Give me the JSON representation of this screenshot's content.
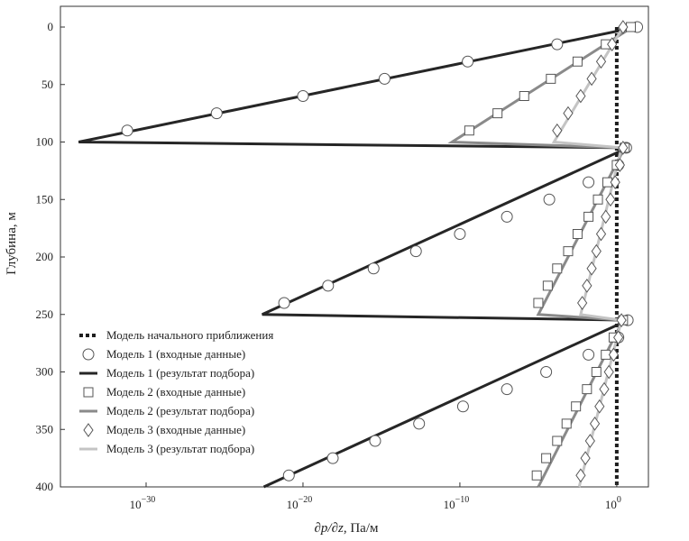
{
  "chart_data": {
    "type": "line",
    "xlabel_parts": [
      "∂p/∂z",
      ", Па/м"
    ],
    "ylabel": "Глубина, м",
    "x_scale": "log",
    "xlim_log10": [
      -35,
      1.5
    ],
    "ylim": [
      0,
      400
    ],
    "y_inverted": true,
    "x_ticks": [
      {
        "exp": -30,
        "base": "10",
        "sup": "−30"
      },
      {
        "exp": -20,
        "base": "10",
        "sup": "−20"
      },
      {
        "exp": -10,
        "base": "10",
        "sup": "−10"
      },
      {
        "exp": 0,
        "base": "10",
        "sup": "0"
      }
    ],
    "y_ticks": [
      0,
      50,
      100,
      150,
      200,
      250,
      300,
      350,
      400
    ],
    "grid": false,
    "legend_position": "lower-left",
    "colors": {
      "initial": "#1e1e1e",
      "model1": "#262626",
      "model2": "#8a8a8a",
      "model3": "#c4c4c4",
      "marker_stroke": "#555555"
    },
    "series": [
      {
        "name": "Модель начального приближения",
        "kind": "line",
        "style": "dotted",
        "color_key": "initial",
        "x_log10": [
          0,
          0,
          0,
          0,
          0,
          0,
          0,
          0,
          0,
          0,
          0,
          0,
          0,
          0,
          0,
          0,
          0,
          0
        ],
        "y": [
          0,
          25,
          50,
          75,
          100,
          125,
          150,
          175,
          200,
          225,
          250,
          275,
          300,
          325,
          350,
          375,
          390,
          400
        ]
      },
      {
        "name": "Модель 1 (входные данные)",
        "kind": "markers",
        "marker": "circle",
        "color_key": "model1",
        "x_log10": [
          1.3,
          -3.8,
          -9.5,
          -14.8,
          -20.0,
          -25.5,
          -31.2,
          0.6,
          0.1,
          -1.8,
          -4.3,
          -7.0,
          -10.0,
          -12.8,
          -15.5,
          -18.4,
          -21.2,
          0.7,
          0.1,
          -1.8,
          -4.5,
          -7.0,
          -9.8,
          -12.6,
          -15.4,
          -18.1,
          -20.9
        ],
        "y": [
          0,
          15,
          30,
          45,
          60,
          75,
          90,
          105,
          120,
          135,
          150,
          165,
          180,
          195,
          210,
          225,
          240,
          255,
          270,
          285,
          300,
          315,
          330,
          345,
          360,
          375,
          390
        ]
      },
      {
        "name": "Модель 1 (результат подбора)",
        "kind": "line",
        "style": "solid",
        "color_key": "model1",
        "x_log10": [
          1.3,
          -34.3,
          0.7,
          -22.6,
          0.7,
          -22.5
        ],
        "y": [
          0,
          100,
          105,
          250,
          255,
          400
        ]
      },
      {
        "name": "Модель 2 (входные данные)",
        "kind": "markers",
        "marker": "square",
        "color_key": "model2",
        "x_log10": [
          0.9,
          -0.7,
          -2.5,
          -4.2,
          -5.9,
          -7.6,
          -9.4,
          0.5,
          0.0,
          -0.6,
          -1.2,
          -1.8,
          -2.5,
          -3.1,
          -3.8,
          -4.4,
          -5.0,
          0.4,
          -0.2,
          -0.7,
          -1.3,
          -1.9,
          -2.6,
          -3.2,
          -3.8,
          -4.5,
          -5.1
        ],
        "y": [
          0,
          15,
          30,
          45,
          60,
          75,
          90,
          105,
          120,
          135,
          150,
          165,
          180,
          195,
          210,
          225,
          240,
          255,
          270,
          285,
          300,
          315,
          330,
          345,
          360,
          375,
          390
        ]
      },
      {
        "name": "Модель 2 (результат подбора)",
        "kind": "line",
        "style": "solid",
        "color_key": "model2",
        "x_log10": [
          1.0,
          -10.5,
          0.5,
          -5.0,
          0.4,
          -5.0
        ],
        "y": [
          0,
          100,
          105,
          250,
          255,
          400
        ]
      },
      {
        "name": "Модель 3 (входные данные)",
        "kind": "markers",
        "marker": "diamond",
        "color_key": "model3",
        "x_log10": [
          0.4,
          -0.3,
          -1.0,
          -1.6,
          -2.3,
          -3.1,
          -3.8,
          0.4,
          0.2,
          -0.1,
          -0.4,
          -0.7,
          -1.0,
          -1.3,
          -1.6,
          -1.9,
          -2.2,
          0.3,
          0.1,
          -0.2,
          -0.5,
          -0.8,
          -1.1,
          -1.4,
          -1.7,
          -2.0,
          -2.3
        ],
        "y": [
          0,
          15,
          30,
          45,
          60,
          75,
          90,
          105,
          120,
          135,
          150,
          165,
          180,
          195,
          210,
          225,
          240,
          255,
          270,
          285,
          300,
          315,
          330,
          345,
          360,
          375,
          390
        ]
      },
      {
        "name": "Модель 3 (результат подбора)",
        "kind": "line",
        "style": "solid",
        "color_key": "model3",
        "x_log10": [
          0.4,
          -4.0,
          0.3,
          -2.3,
          0.3,
          -2.4
        ],
        "y": [
          0,
          100,
          105,
          250,
          255,
          400
        ]
      }
    ],
    "legend": [
      {
        "label": "Модель начального приближения",
        "kind": "line",
        "style": "dotted",
        "color_key": "initial"
      },
      {
        "label": "Модель 1 (входные данные)",
        "kind": "marker",
        "marker": "circle",
        "color_key": "model1"
      },
      {
        "label": "Модель 1 (результат подбора)",
        "kind": "line",
        "style": "solid",
        "color_key": "model1"
      },
      {
        "label": "Модель 2 (входные данные)",
        "kind": "marker",
        "marker": "square",
        "color_key": "model2"
      },
      {
        "label": "Модель 2 (результат подбора)",
        "kind": "line",
        "style": "solid",
        "color_key": "model2"
      },
      {
        "label": "Модель 3 (входные данные)",
        "kind": "marker",
        "marker": "diamond",
        "color_key": "model3"
      },
      {
        "label": "Модель 3 (результат подбора)",
        "kind": "line",
        "style": "solid",
        "color_key": "model3"
      }
    ]
  }
}
